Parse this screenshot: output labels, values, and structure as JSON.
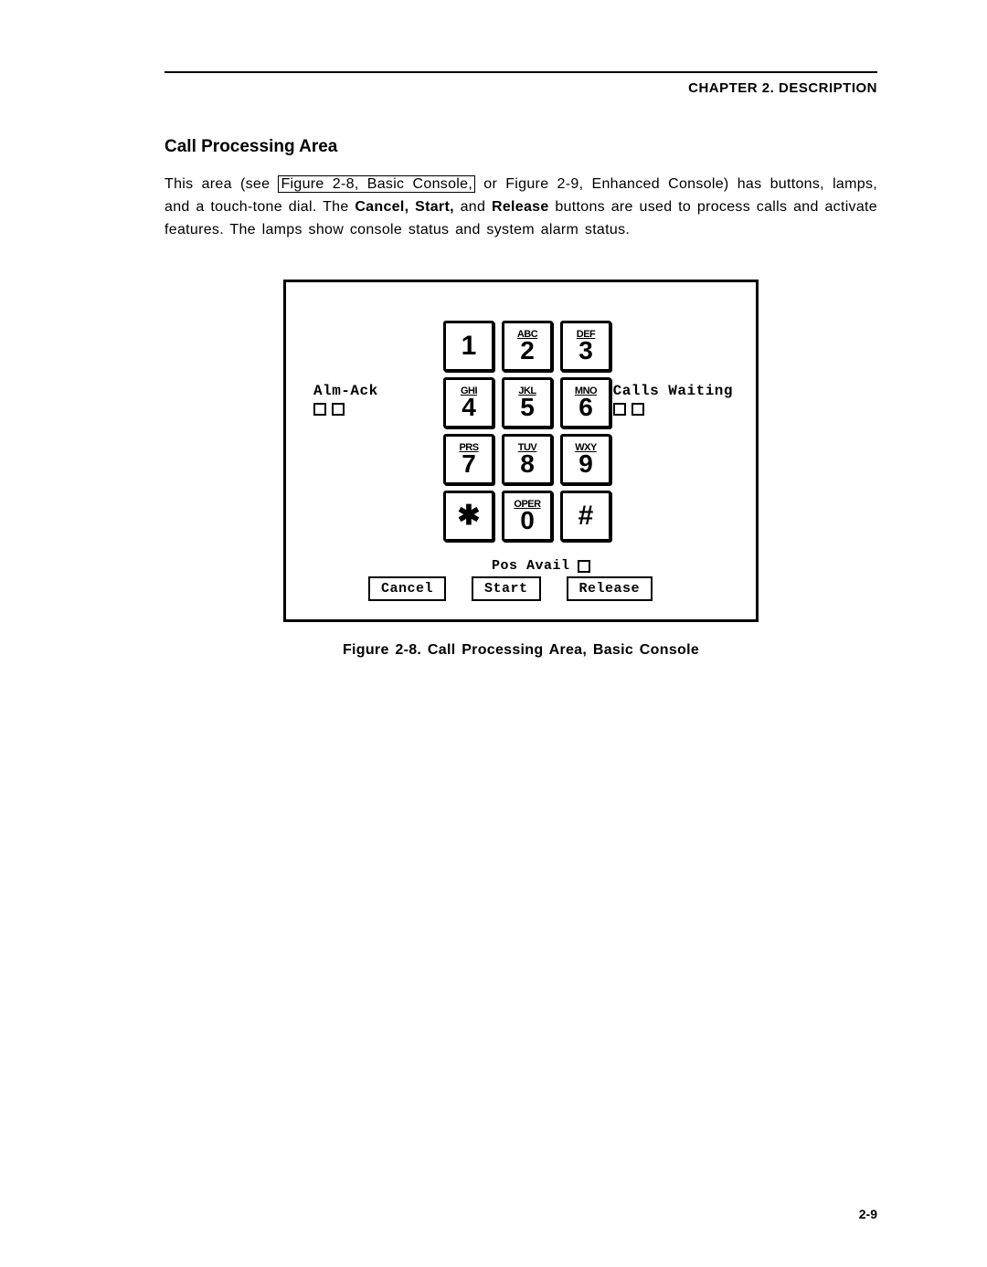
{
  "header": {
    "chapter": "CHAPTER 2. DESCRIPTION"
  },
  "section": {
    "title": "Call Processing Area"
  },
  "paragraph": {
    "part1": "This area (see ",
    "ref": "Figure 2-8, Basic Console,",
    "part2": " or Figure 2-9, Enhanced Console) has buttons, lamps, and a touch-tone dial. The ",
    "b1": "Cancel, Start,",
    "mid": " and ",
    "b2": "Release",
    "part3": " buttons are used to process calls and activate features. The lamps show console status and system alarm status."
  },
  "keypad": {
    "rows": [
      [
        {
          "letters": "",
          "digit": "1"
        },
        {
          "letters": "ABC",
          "digit": "2"
        },
        {
          "letters": "DEF",
          "digit": "3"
        }
      ],
      [
        {
          "letters": "GHI",
          "digit": "4"
        },
        {
          "letters": "JKL",
          "digit": "5"
        },
        {
          "letters": "MNO",
          "digit": "6"
        }
      ],
      [
        {
          "letters": "PRS",
          "digit": "7"
        },
        {
          "letters": "TUV",
          "digit": "8"
        },
        {
          "letters": "WXY",
          "digit": "9"
        }
      ],
      [
        {
          "sym": "✱"
        },
        {
          "letters": "OPER",
          "digit": "0"
        },
        {
          "sym": "#"
        }
      ]
    ]
  },
  "labels": {
    "alm_ack": "Alm-Ack",
    "calls_waiting": "Calls Waiting",
    "pos_avail": "Pos Avail"
  },
  "buttons": {
    "cancel": "Cancel",
    "start": "Start",
    "release": "Release"
  },
  "figure": {
    "caption": "Figure 2-8. Call Processing Area, Basic Console"
  },
  "pagenum": "2-9"
}
